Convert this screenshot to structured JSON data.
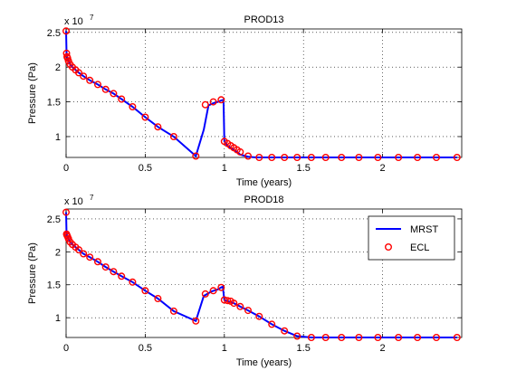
{
  "chart_data": [
    {
      "type": "line",
      "title": "PROD13",
      "xlabel": "Time (years)",
      "ylabel": "Pressure (Pa)",
      "exponent_label": "x 10",
      "exponent_power": "7",
      "xlim": [
        0,
        2.5
      ],
      "ylim": [
        0.7,
        2.55
      ],
      "xticks": [
        0,
        0.5,
        1,
        1.5,
        2
      ],
      "xtick_labels": [
        "0",
        "0.5",
        "1",
        "1.5",
        "2"
      ],
      "yticks": [
        1,
        1.5,
        2,
        2.5
      ],
      "ytick_labels": [
        "1",
        "1.5",
        "2",
        "2.5"
      ],
      "grid": true,
      "series": [
        {
          "name": "MRST",
          "style": "line",
          "color": "#0000ff",
          "x": [
            0,
            0.003,
            0.006,
            0.01,
            0.015,
            0.025,
            0.04,
            0.06,
            0.08,
            0.11,
            0.15,
            0.2,
            0.25,
            0.3,
            0.35,
            0.42,
            0.5,
            0.58,
            0.68,
            0.82,
            0.87,
            0.9,
            0.93,
            0.96,
            0.98,
            0.995,
            1.0,
            1.01,
            1.02,
            1.04,
            1.06,
            1.08,
            1.1,
            1.15,
            1.2,
            1.3,
            1.4,
            1.5,
            1.6,
            1.7,
            1.8,
            1.9,
            2.0,
            2.1,
            2.2,
            2.3,
            2.4,
            2.47
          ],
          "y": [
            2.52,
            2.2,
            2.15,
            2.13,
            2.09,
            2.04,
            2.0,
            1.96,
            1.92,
            1.87,
            1.81,
            1.75,
            1.68,
            1.62,
            1.54,
            1.43,
            1.28,
            1.14,
            1.0,
            0.72,
            1.1,
            1.45,
            1.48,
            1.5,
            1.52,
            1.53,
            0.93,
            0.9,
            0.87,
            0.84,
            0.81,
            0.78,
            0.74,
            0.71,
            0.7,
            0.7,
            0.7,
            0.7,
            0.7,
            0.7,
            0.7,
            0.7,
            0.7,
            0.7,
            0.7,
            0.7,
            0.7,
            0.7
          ]
        },
        {
          "name": "ECL",
          "style": "markers",
          "color": "#ff0000",
          "x": [
            0,
            0.003,
            0.006,
            0.01,
            0.015,
            0.025,
            0.04,
            0.06,
            0.08,
            0.11,
            0.15,
            0.2,
            0.25,
            0.3,
            0.35,
            0.42,
            0.5,
            0.58,
            0.68,
            0.82,
            0.88,
            0.93,
            0.98,
            1.0,
            1.02,
            1.04,
            1.06,
            1.08,
            1.1,
            1.15,
            1.22,
            1.3,
            1.38,
            1.46,
            1.55,
            1.64,
            1.74,
            1.85,
            1.97,
            2.1,
            2.22,
            2.34,
            2.47
          ],
          "y": [
            2.52,
            2.2,
            2.15,
            2.13,
            2.09,
            2.04,
            2.0,
            1.96,
            1.92,
            1.87,
            1.81,
            1.75,
            1.68,
            1.62,
            1.54,
            1.43,
            1.28,
            1.14,
            1.0,
            0.72,
            1.46,
            1.5,
            1.53,
            0.93,
            0.9,
            0.87,
            0.84,
            0.81,
            0.78,
            0.72,
            0.7,
            0.7,
            0.7,
            0.7,
            0.7,
            0.7,
            0.7,
            0.7,
            0.7,
            0.7,
            0.7,
            0.7,
            0.7
          ]
        }
      ]
    },
    {
      "type": "line",
      "title": "PROD18",
      "xlabel": "Time (years)",
      "ylabel": "Pressure (Pa)",
      "exponent_label": "x 10",
      "exponent_power": "7",
      "xlim": [
        0,
        2.5
      ],
      "ylim": [
        0.7,
        2.65
      ],
      "xticks": [
        0,
        0.5,
        1,
        1.5,
        2
      ],
      "xtick_labels": [
        "0",
        "0.5",
        "1",
        "1.5",
        "2"
      ],
      "yticks": [
        1,
        1.5,
        2,
        2.5
      ],
      "ytick_labels": [
        "1",
        "1.5",
        "2",
        "2.5"
      ],
      "grid": true,
      "legend": {
        "position": "top-right",
        "entries": [
          "MRST",
          "ECL"
        ]
      },
      "series": [
        {
          "name": "MRST",
          "style": "line",
          "color": "#0000ff",
          "x": [
            0,
            0.003,
            0.006,
            0.01,
            0.015,
            0.025,
            0.04,
            0.06,
            0.08,
            0.11,
            0.15,
            0.2,
            0.25,
            0.3,
            0.35,
            0.42,
            0.5,
            0.58,
            0.68,
            0.82,
            0.87,
            0.92,
            0.96,
            0.98,
            0.99,
            1.0,
            1.01,
            1.02,
            1.04,
            1.06,
            1.1,
            1.15,
            1.22,
            1.3,
            1.38,
            1.46,
            1.55,
            1.64,
            1.74,
            1.85,
            1.97,
            2.1,
            2.22,
            2.34,
            2.47
          ],
          "y": [
            2.6,
            2.27,
            2.25,
            2.23,
            2.2,
            2.15,
            2.11,
            2.07,
            2.03,
            1.97,
            1.92,
            1.85,
            1.77,
            1.7,
            1.63,
            1.54,
            1.41,
            1.29,
            1.1,
            0.95,
            1.33,
            1.4,
            1.43,
            1.46,
            1.47,
            1.27,
            1.26,
            1.25,
            1.24,
            1.22,
            1.17,
            1.11,
            1.02,
            0.9,
            0.8,
            0.72,
            0.7,
            0.7,
            0.7,
            0.7,
            0.7,
            0.7,
            0.7,
            0.7,
            0.7
          ]
        },
        {
          "name": "ECL",
          "style": "markers",
          "color": "#ff0000",
          "x": [
            0,
            0.003,
            0.006,
            0.01,
            0.015,
            0.025,
            0.04,
            0.06,
            0.08,
            0.11,
            0.15,
            0.2,
            0.25,
            0.3,
            0.35,
            0.42,
            0.5,
            0.58,
            0.68,
            0.82,
            0.88,
            0.93,
            0.98,
            1.0,
            1.02,
            1.04,
            1.06,
            1.1,
            1.15,
            1.22,
            1.3,
            1.38,
            1.46,
            1.55,
            1.64,
            1.74,
            1.85,
            1.97,
            2.1,
            2.22,
            2.34,
            2.47
          ],
          "y": [
            2.6,
            2.27,
            2.25,
            2.23,
            2.2,
            2.15,
            2.11,
            2.07,
            2.03,
            1.97,
            1.92,
            1.85,
            1.77,
            1.7,
            1.63,
            1.54,
            1.41,
            1.29,
            1.1,
            0.95,
            1.36,
            1.41,
            1.46,
            1.27,
            1.26,
            1.25,
            1.22,
            1.17,
            1.11,
            1.02,
            0.9,
            0.8,
            0.72,
            0.7,
            0.7,
            0.7,
            0.7,
            0.7,
            0.7,
            0.7,
            0.7,
            0.7
          ]
        }
      ]
    }
  ]
}
